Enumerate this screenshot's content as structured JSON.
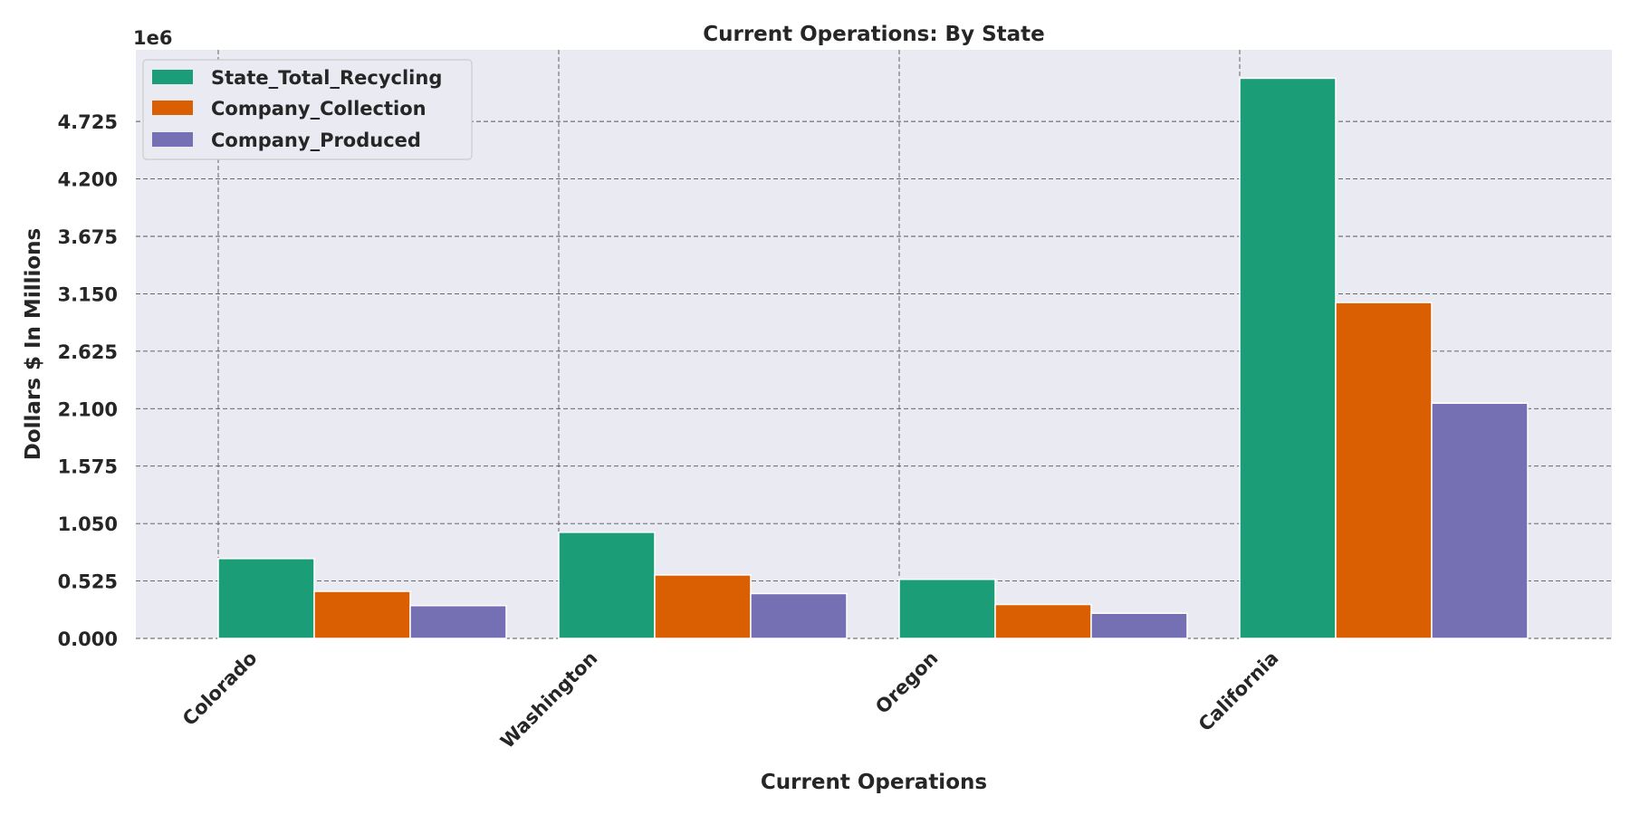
{
  "chart_data": {
    "type": "bar",
    "title": "Current Operations: By State",
    "xlabel": "Current Operations",
    "ylabel": "Dollars $ In Millions",
    "y_offset_text": "1e6",
    "categories": [
      "Colorado",
      "Washington",
      "Oregon",
      "California"
    ],
    "series": [
      {
        "name": "State_Total_Recycling",
        "color": "#1b9e77",
        "values": [
          730000,
          970000,
          540000,
          5120000
        ]
      },
      {
        "name": "Company_Collection",
        "color": "#d95f02",
        "values": [
          430000,
          580000,
          310000,
          3070000
        ]
      },
      {
        "name": "Company_Produced",
        "color": "#7570b3",
        "values": [
          300000,
          410000,
          230000,
          2150000
        ]
      }
    ],
    "yticks": [
      0,
      525000,
      1050000,
      1575000,
      2100000,
      2625000,
      3150000,
      3675000,
      4200000,
      4725000
    ],
    "ytick_labels": [
      "0.000",
      "0.525",
      "1.050",
      "1.575",
      "2.100",
      "2.625",
      "3.150",
      "3.675",
      "4.200",
      "4.725"
    ],
    "ylim": [
      0,
      5380000
    ],
    "grid": true,
    "legend_position": "top-left",
    "plot_background": "#eaeaf2"
  }
}
